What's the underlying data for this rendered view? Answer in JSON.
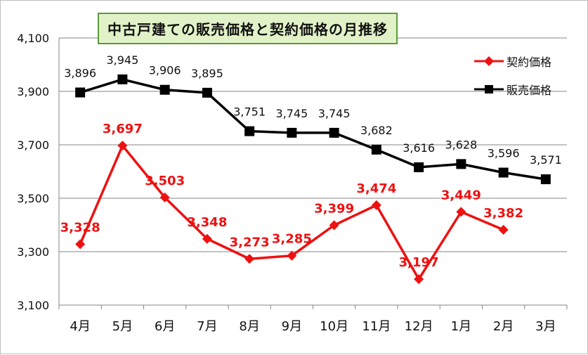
{
  "chart_data": {
    "type": "line",
    "title": "中古戸建ての販売価格と契約価格の月推移",
    "categories": [
      "4月",
      "5月",
      "6月",
      "7月",
      "8月",
      "9月",
      "10月",
      "11月",
      "12月",
      "1月",
      "2月",
      "3月"
    ],
    "ylim": [
      3100,
      4100
    ],
    "yticks": [
      3100,
      3300,
      3500,
      3700,
      3900,
      4100
    ],
    "ytick_labels": [
      "3,100",
      "3,300",
      "3,500",
      "3,700",
      "3,900",
      "4,100"
    ],
    "grid": true,
    "legend_position": "top-right",
    "series": [
      {
        "name": "契約価格",
        "color": "#ee1111",
        "marker": "diamond",
        "values": [
          3328,
          3697,
          3503,
          3348,
          3273,
          3285,
          3399,
          3474,
          3197,
          3449,
          3382,
          null
        ],
        "labels": [
          "3,328",
          "3,697",
          "3,503",
          "3,348",
          "3,273",
          "3,285",
          "3,399",
          "3,474",
          "3,197",
          "3,449",
          "3,382",
          null
        ]
      },
      {
        "name": "販売価格",
        "color": "#000000",
        "marker": "square",
        "values": [
          3896,
          3945,
          3906,
          3895,
          3751,
          3745,
          3745,
          3682,
          3616,
          3628,
          3596,
          3571
        ],
        "labels": [
          "3,896",
          "3,945",
          "3,906",
          "3,895",
          "3,751",
          "3,745",
          "3,745",
          "3,682",
          "3,616",
          "3,628",
          "3,596",
          "3,571"
        ]
      }
    ]
  }
}
